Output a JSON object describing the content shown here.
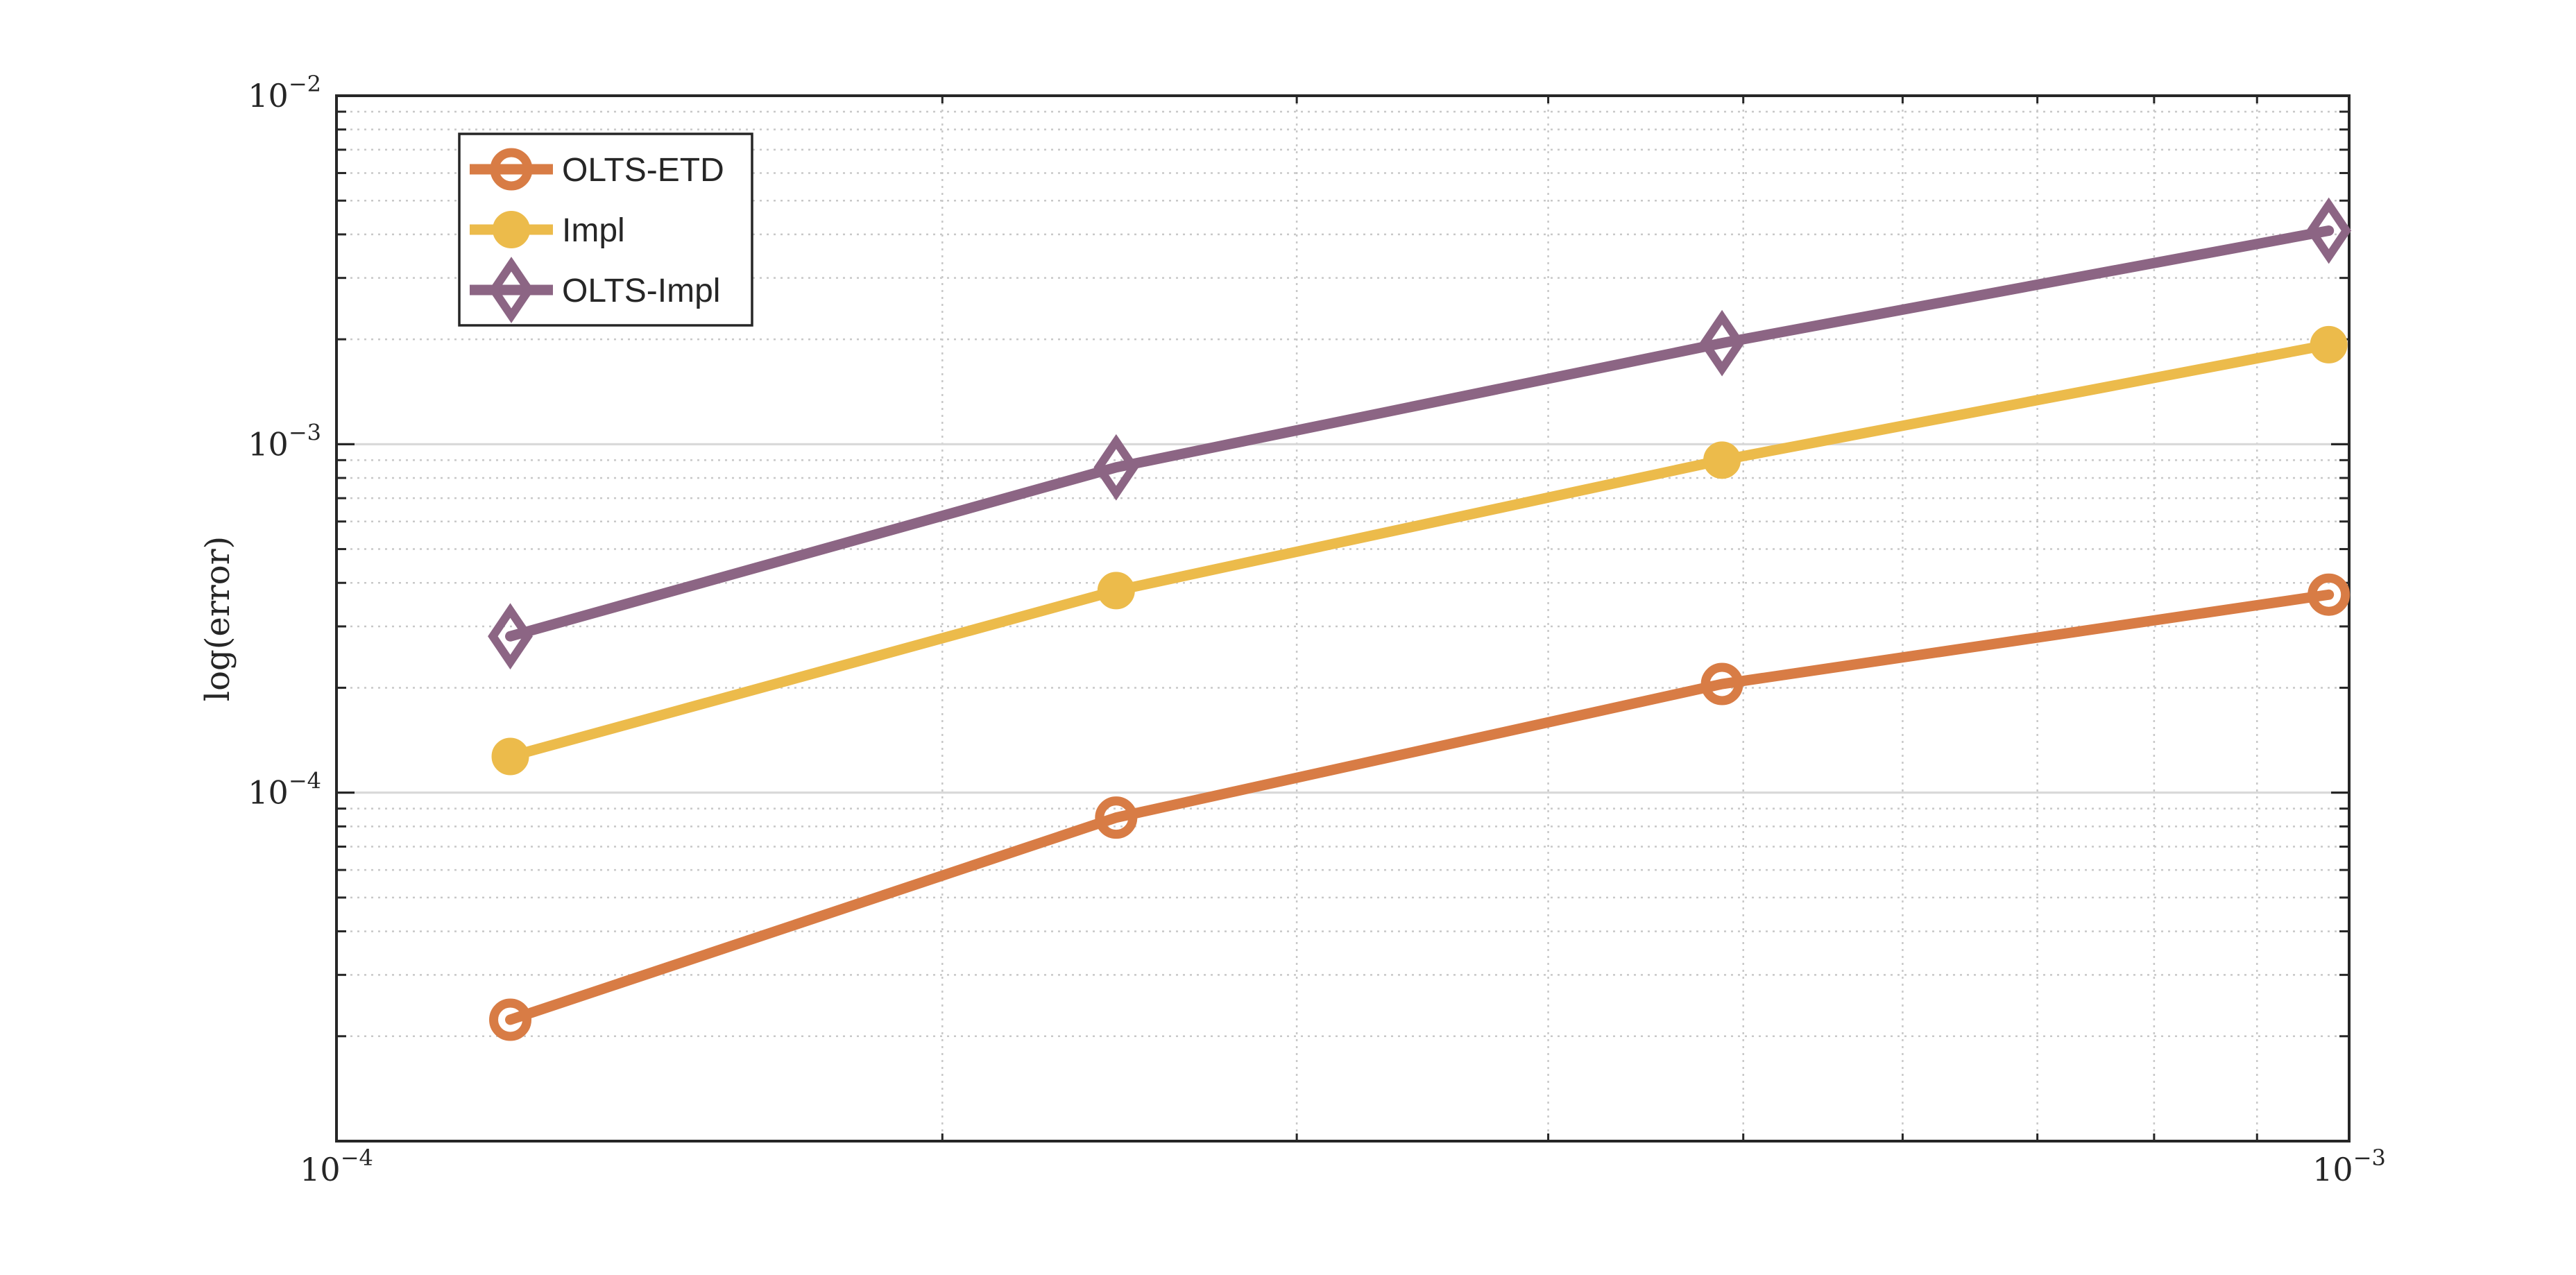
{
  "chart_data": {
    "type": "line",
    "title": "",
    "xlabel": "",
    "ylabel": "log(error)",
    "x_scale": "log",
    "y_scale": "log",
    "xlim": [
      0.0001,
      0.001
    ],
    "ylim": [
      1e-05,
      0.01
    ],
    "x_major_ticks": [
      {
        "value": 0.0001,
        "base": "10",
        "exp": "−4"
      },
      {
        "value": 0.001,
        "base": "10",
        "exp": "−3"
      }
    ],
    "y_major_ticks": [
      {
        "value": 0.0001,
        "base": "10",
        "exp": "−4"
      },
      {
        "value": 0.001,
        "base": "10",
        "exp": "−3"
      },
      {
        "value": 0.01,
        "base": "10",
        "exp": "−2"
      }
    ],
    "grid": true,
    "minor_grid": true,
    "legend_position": "top-left",
    "series": [
      {
        "name": "OLTS-ETD",
        "color": "#D87C45",
        "marker": "circle-open",
        "x": [
          0.000122,
          0.000244,
          0.000488,
          0.000977
        ],
        "y": [
          2.23e-05,
          8.48e-05,
          0.000205,
          0.00037
        ]
      },
      {
        "name": "Impl",
        "color": "#ECBB4B",
        "marker": "circle-filled",
        "x": [
          0.000122,
          0.000244,
          0.000488,
          0.000977
        ],
        "y": [
          0.000127,
          0.00038,
          0.0009,
          0.00193
        ]
      },
      {
        "name": "OLTS-Impl",
        "color": "#8C6584",
        "marker": "diamond-open",
        "x": [
          0.000122,
          0.000244,
          0.000488,
          0.000977
        ],
        "y": [
          0.000281,
          0.000858,
          0.00195,
          0.0041
        ]
      }
    ]
  }
}
